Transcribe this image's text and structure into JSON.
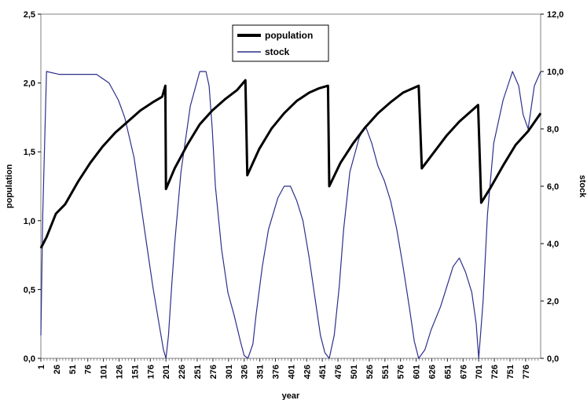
{
  "chart_data": {
    "type": "line",
    "xlabel": "year",
    "ylabel": "population",
    "y2label": "stock",
    "xlim": [
      1,
      800
    ],
    "ylim": [
      0,
      2.5
    ],
    "y2lim": [
      0,
      12
    ],
    "grid": false,
    "legend_placement": "top-center",
    "x_tick_labels": [
      "1",
      "26",
      "51",
      "76",
      "101",
      "126",
      "151",
      "176",
      "201",
      "226",
      "251",
      "276",
      "301",
      "326",
      "351",
      "376",
      "401",
      "426",
      "451",
      "476",
      "501",
      "526",
      "551",
      "576",
      "601",
      "626",
      "651",
      "676",
      "701",
      "726",
      "751",
      "776"
    ],
    "y_tick_labels": [
      "0,0",
      "0,5",
      "1,0",
      "1,5",
      "2,0",
      "2,5"
    ],
    "y2_tick_labels": [
      "0,0",
      "2,0",
      "4,0",
      "6,0",
      "8,0",
      "10,0",
      "12,0"
    ],
    "series": [
      {
        "name": "population",
        "axis": "left",
        "color": "#000000",
        "points": [
          [
            1,
            0.8
          ],
          [
            10,
            0.88
          ],
          [
            25,
            1.05
          ],
          [
            40,
            1.12
          ],
          [
            60,
            1.28
          ],
          [
            80,
            1.42
          ],
          [
            100,
            1.54
          ],
          [
            120,
            1.64
          ],
          [
            140,
            1.72
          ],
          [
            160,
            1.8
          ],
          [
            180,
            1.86
          ],
          [
            195,
            1.9
          ],
          [
            200,
            1.98
          ],
          [
            201,
            1.23
          ],
          [
            215,
            1.38
          ],
          [
            235,
            1.55
          ],
          [
            255,
            1.7
          ],
          [
            275,
            1.8
          ],
          [
            295,
            1.88
          ],
          [
            315,
            1.95
          ],
          [
            328,
            2.02
          ],
          [
            331,
            1.33
          ],
          [
            350,
            1.52
          ],
          [
            370,
            1.67
          ],
          [
            390,
            1.78
          ],
          [
            410,
            1.87
          ],
          [
            430,
            1.93
          ],
          [
            445,
            1.96
          ],
          [
            460,
            1.98
          ],
          [
            462,
            1.25
          ],
          [
            480,
            1.42
          ],
          [
            500,
            1.56
          ],
          [
            520,
            1.68
          ],
          [
            540,
            1.78
          ],
          [
            560,
            1.86
          ],
          [
            580,
            1.93
          ],
          [
            605,
            1.98
          ],
          [
            610,
            1.38
          ],
          [
            630,
            1.5
          ],
          [
            650,
            1.62
          ],
          [
            670,
            1.72
          ],
          [
            685,
            1.78
          ],
          [
            700,
            1.84
          ],
          [
            705,
            1.13
          ],
          [
            720,
            1.24
          ],
          [
            740,
            1.4
          ],
          [
            760,
            1.55
          ],
          [
            780,
            1.65
          ],
          [
            800,
            1.78
          ]
        ]
      },
      {
        "name": "stock",
        "axis": "right",
        "color": "#2c2f8a",
        "points": [
          [
            1,
            0.8
          ],
          [
            4,
            5.0
          ],
          [
            10,
            10.0
          ],
          [
            30,
            9.9
          ],
          [
            60,
            9.9
          ],
          [
            90,
            9.9
          ],
          [
            110,
            9.6
          ],
          [
            125,
            9.0
          ],
          [
            135,
            8.4
          ],
          [
            150,
            7.0
          ],
          [
            160,
            5.5
          ],
          [
            170,
            4.0
          ],
          [
            180,
            2.5
          ],
          [
            190,
            1.2
          ],
          [
            197,
            0.3
          ],
          [
            201,
            0.0
          ],
          [
            205,
            0.8
          ],
          [
            210,
            2.5
          ],
          [
            215,
            4.0
          ],
          [
            225,
            6.5
          ],
          [
            240,
            8.8
          ],
          [
            255,
            10.0
          ],
          [
            265,
            10.0
          ],
          [
            270,
            9.5
          ],
          [
            275,
            8.0
          ],
          [
            280,
            6.0
          ],
          [
            290,
            3.8
          ],
          [
            300,
            2.3
          ],
          [
            310,
            1.5
          ],
          [
            320,
            0.6
          ],
          [
            326,
            0.1
          ],
          [
            332,
            0.0
          ],
          [
            340,
            0.5
          ],
          [
            345,
            1.5
          ],
          [
            355,
            3.2
          ],
          [
            365,
            4.5
          ],
          [
            380,
            5.6
          ],
          [
            390,
            6.0
          ],
          [
            400,
            6.0
          ],
          [
            410,
            5.5
          ],
          [
            420,
            4.8
          ],
          [
            430,
            3.5
          ],
          [
            440,
            2.0
          ],
          [
            448,
            0.8
          ],
          [
            455,
            0.2
          ],
          [
            462,
            0.0
          ],
          [
            470,
            0.8
          ],
          [
            478,
            2.5
          ],
          [
            485,
            4.5
          ],
          [
            495,
            6.5
          ],
          [
            510,
            7.7
          ],
          [
            520,
            8.1
          ],
          [
            530,
            7.5
          ],
          [
            540,
            6.7
          ],
          [
            550,
            6.2
          ],
          [
            560,
            5.5
          ],
          [
            570,
            4.5
          ],
          [
            580,
            3.2
          ],
          [
            590,
            1.8
          ],
          [
            598,
            0.6
          ],
          [
            605,
            0.0
          ],
          [
            615,
            0.3
          ],
          [
            625,
            1.0
          ],
          [
            640,
            1.8
          ],
          [
            650,
            2.5
          ],
          [
            660,
            3.2
          ],
          [
            670,
            3.5
          ],
          [
            680,
            3.0
          ],
          [
            690,
            2.3
          ],
          [
            697,
            1.2
          ],
          [
            701,
            0.0
          ],
          [
            708,
            2.0
          ],
          [
            715,
            5.0
          ],
          [
            725,
            7.5
          ],
          [
            740,
            9.0
          ],
          [
            755,
            10.0
          ],
          [
            765,
            9.5
          ],
          [
            772,
            8.5
          ],
          [
            780,
            8.0
          ],
          [
            790,
            9.5
          ],
          [
            800,
            10.0
          ]
        ]
      }
    ]
  }
}
